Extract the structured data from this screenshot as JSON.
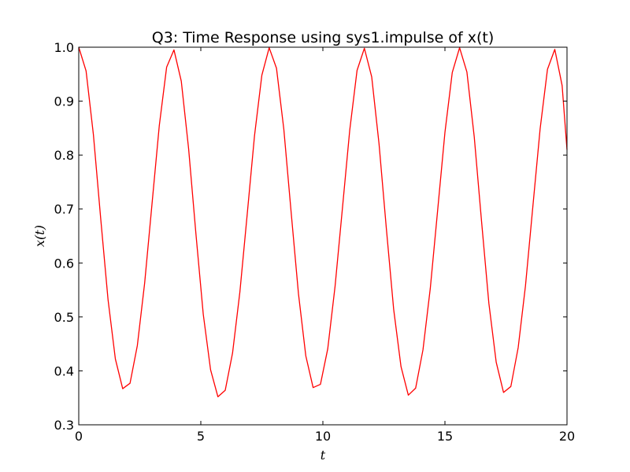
{
  "chart_data": {
    "type": "line",
    "title": "Q3: Time Response using sys1.impulse of x(t)",
    "xlabel": "t",
    "ylabel": "x(t)",
    "xlim": [
      0,
      20
    ],
    "ylim": [
      0.3,
      1.0
    ],
    "xticks": [
      "0",
      "5",
      "10",
      "15",
      "20"
    ],
    "yticks": [
      "0.3",
      "0.4",
      "0.5",
      "0.6",
      "0.7",
      "0.8",
      "0.9",
      "1.0"
    ],
    "grid": false,
    "legend": "none",
    "series": [
      {
        "color": "#ff0000",
        "x": [
          0,
          0.3,
          0.6,
          0.9,
          1.2,
          1.5,
          1.8,
          2.1,
          2.4,
          2.7,
          3.0,
          3.3,
          3.6,
          3.9,
          4.2,
          4.5,
          4.8,
          5.1,
          5.4,
          5.7,
          6.0,
          6.3,
          6.6,
          6.9,
          7.2,
          7.5,
          7.8,
          8.1,
          8.4,
          8.7,
          9.0,
          9.3,
          9.6,
          9.9,
          10.2,
          10.5,
          10.8,
          11.1,
          11.4,
          11.7,
          12.0,
          12.3,
          12.6,
          12.9,
          13.2,
          13.5,
          13.8,
          14.1,
          14.4,
          14.7,
          15.0,
          15.3,
          15.6,
          15.9,
          16.2,
          16.5,
          16.8,
          17.1,
          17.4,
          17.7,
          18.0,
          18.3,
          18.6,
          18.9,
          19.2,
          19.5,
          19.8,
          20.0
        ],
        "y": [
          1.0,
          0.956,
          0.838,
          0.682,
          0.532,
          0.422,
          0.367,
          0.377,
          0.447,
          0.563,
          0.709,
          0.855,
          0.963,
          0.995,
          0.937,
          0.812,
          0.654,
          0.505,
          0.402,
          0.352,
          0.364,
          0.433,
          0.546,
          0.69,
          0.836,
          0.948,
          0.999,
          0.961,
          0.848,
          0.694,
          0.543,
          0.428,
          0.369,
          0.375,
          0.441,
          0.557,
          0.701,
          0.846,
          0.957,
          0.998,
          0.945,
          0.821,
          0.664,
          0.514,
          0.408,
          0.355,
          0.368,
          0.439,
          0.553,
          0.697,
          0.842,
          0.953,
          0.999,
          0.954,
          0.834,
          0.677,
          0.525,
          0.416,
          0.36,
          0.371,
          0.443,
          0.558,
          0.704,
          0.849,
          0.959,
          0.996,
          0.929,
          0.81
        ]
      }
    ]
  }
}
